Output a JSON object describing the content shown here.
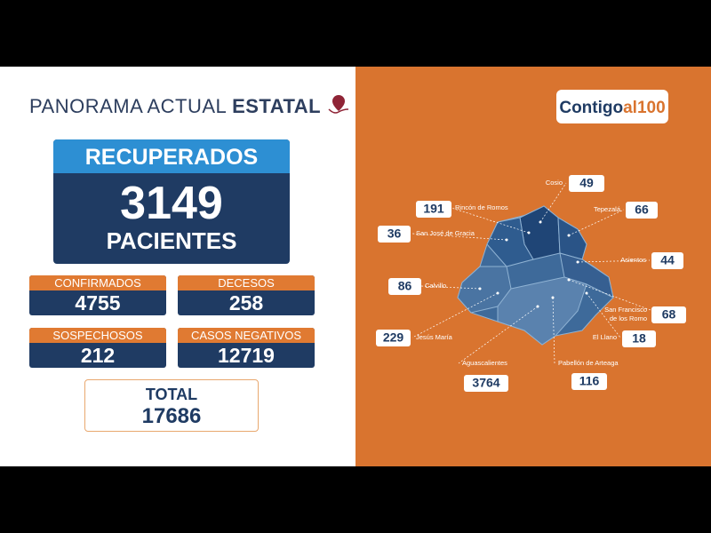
{
  "header": {
    "title_light": "PANORAMA ACTUAL",
    "title_bold": "ESTATAL",
    "logo_main": "Contigo",
    "logo_suffix": "al100"
  },
  "recuperados": {
    "label": "RECUPERADOS",
    "value": "3149",
    "unit": "PACIENTES"
  },
  "stats": [
    {
      "label": "CONFIRMADOS",
      "value": "4755"
    },
    {
      "label": "DECESOS",
      "value": "258"
    },
    {
      "label": "SOSPECHOSOS",
      "value": "212"
    },
    {
      "label": "CASOS NEGATIVOS",
      "value": "12719"
    }
  ],
  "total": {
    "label": "TOTAL",
    "value": "17686"
  },
  "municipios": [
    {
      "name": "Cosio",
      "value": "49"
    },
    {
      "name": "Rincón de Romos",
      "value": "191"
    },
    {
      "name": "Tepezalá",
      "value": "66"
    },
    {
      "name": "San José de Gracia",
      "value": "36"
    },
    {
      "name": "Asientos",
      "value": "44"
    },
    {
      "name": "Calvillo",
      "value": "86"
    },
    {
      "name": "San Francisco de los Romo",
      "value": "68"
    },
    {
      "name": "Jesús María",
      "value": "229"
    },
    {
      "name": "El Llano",
      "value": "18"
    },
    {
      "name": "Aguascalientes",
      "value": "3764"
    },
    {
      "name": "Pabellón de Arteaga",
      "value": "116"
    }
  ]
}
